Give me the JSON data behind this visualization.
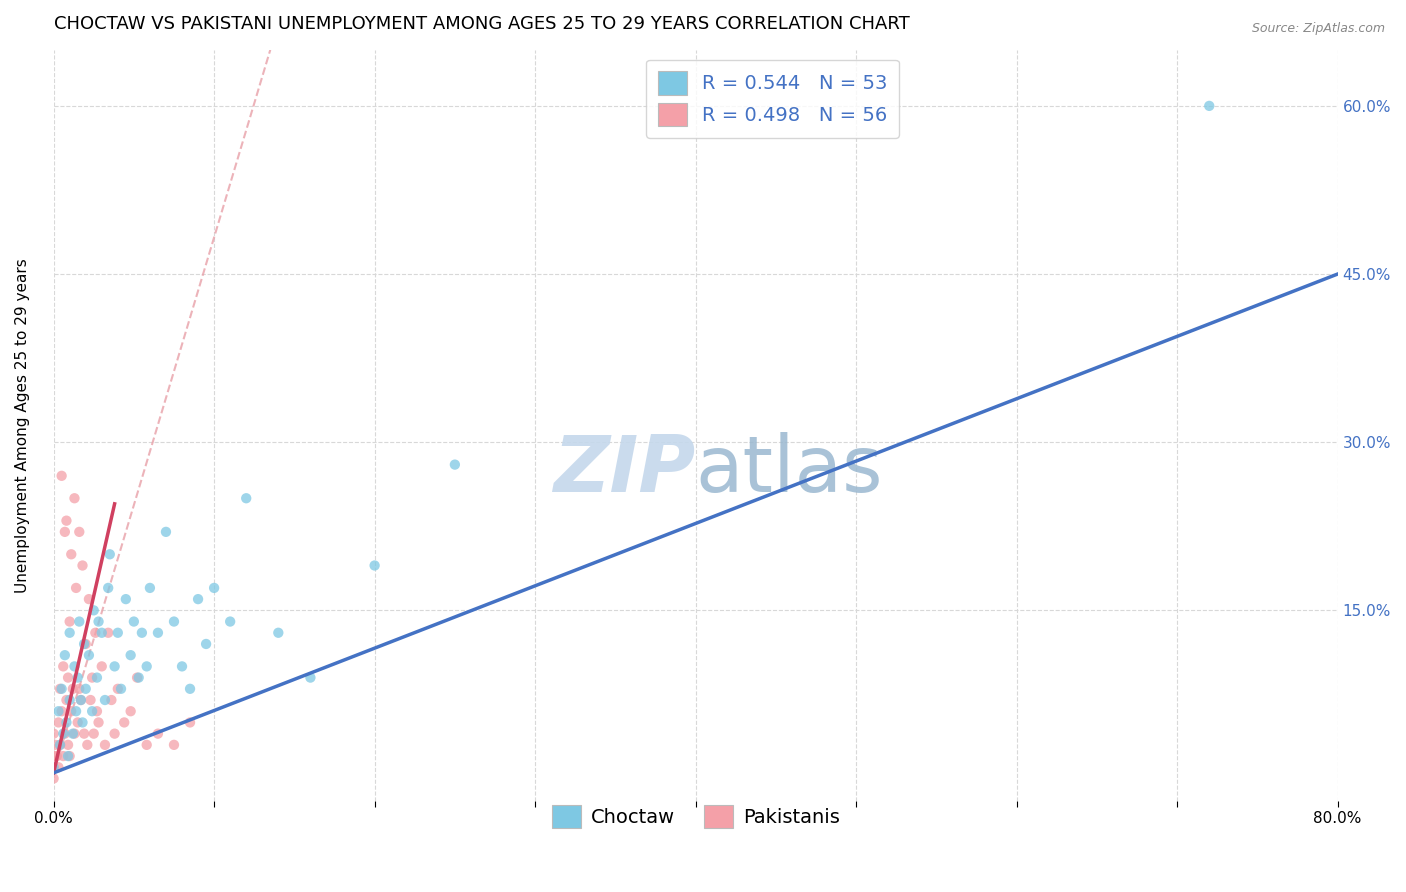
{
  "title": "CHOCTAW VS PAKISTANI UNEMPLOYMENT AMONG AGES 25 TO 29 YEARS CORRELATION CHART",
  "source": "Source: ZipAtlas.com",
  "ylabel": "Unemployment Among Ages 25 to 29 years",
  "xlim": [
    0.0,
    0.8
  ],
  "ylim": [
    -0.02,
    0.65
  ],
  "xticks": [
    0.0,
    0.1,
    0.2,
    0.3,
    0.4,
    0.5,
    0.6,
    0.7,
    0.8
  ],
  "ytick_labels_right": [
    "15.0%",
    "30.0%",
    "45.0%",
    "60.0%"
  ],
  "ytick_values_right": [
    0.15,
    0.3,
    0.45,
    0.6
  ],
  "choctaw_color": "#7ec8e3",
  "pakistani_color": "#f4a0a8",
  "choctaw_R": 0.544,
  "choctaw_N": 53,
  "pakistani_R": 0.498,
  "pakistani_N": 56,
  "legend_label_choctaw": "Choctaw",
  "legend_label_pakistani": "Pakistanis",
  "choctaw_scatter_x": [
    0.0,
    0.003,
    0.004,
    0.005,
    0.006,
    0.007,
    0.008,
    0.009,
    0.01,
    0.01,
    0.012,
    0.013,
    0.014,
    0.015,
    0.016,
    0.017,
    0.018,
    0.019,
    0.02,
    0.022,
    0.024,
    0.025,
    0.027,
    0.028,
    0.03,
    0.032,
    0.034,
    0.035,
    0.038,
    0.04,
    0.042,
    0.045,
    0.048,
    0.05,
    0.053,
    0.055,
    0.058,
    0.06,
    0.065,
    0.07,
    0.075,
    0.08,
    0.085,
    0.09,
    0.095,
    0.1,
    0.11,
    0.12,
    0.14,
    0.16,
    0.2,
    0.25,
    0.72
  ],
  "choctaw_scatter_y": [
    0.01,
    0.06,
    0.03,
    0.08,
    0.04,
    0.11,
    0.05,
    0.02,
    0.07,
    0.13,
    0.04,
    0.1,
    0.06,
    0.09,
    0.14,
    0.07,
    0.05,
    0.12,
    0.08,
    0.11,
    0.06,
    0.15,
    0.09,
    0.14,
    0.13,
    0.07,
    0.17,
    0.2,
    0.1,
    0.13,
    0.08,
    0.16,
    0.11,
    0.14,
    0.09,
    0.13,
    0.1,
    0.17,
    0.13,
    0.22,
    0.14,
    0.1,
    0.08,
    0.16,
    0.12,
    0.17,
    0.14,
    0.25,
    0.13,
    0.09,
    0.19,
    0.28,
    0.6
  ],
  "pakistani_scatter_x": [
    0.0,
    0.0,
    0.0,
    0.0,
    0.001,
    0.002,
    0.003,
    0.003,
    0.004,
    0.004,
    0.005,
    0.005,
    0.006,
    0.006,
    0.007,
    0.007,
    0.008,
    0.008,
    0.009,
    0.009,
    0.01,
    0.01,
    0.011,
    0.011,
    0.012,
    0.013,
    0.013,
    0.014,
    0.015,
    0.016,
    0.016,
    0.017,
    0.018,
    0.019,
    0.02,
    0.021,
    0.022,
    0.023,
    0.024,
    0.025,
    0.026,
    0.027,
    0.028,
    0.03,
    0.032,
    0.034,
    0.036,
    0.038,
    0.04,
    0.044,
    0.048,
    0.052,
    0.058,
    0.065,
    0.075,
    0.085
  ],
  "pakistani_scatter_y": [
    0.0,
    0.01,
    0.02,
    0.04,
    0.03,
    0.02,
    0.05,
    0.01,
    0.08,
    0.03,
    0.27,
    0.06,
    0.1,
    0.02,
    0.22,
    0.04,
    0.07,
    0.23,
    0.03,
    0.09,
    0.14,
    0.02,
    0.2,
    0.06,
    0.08,
    0.25,
    0.04,
    0.17,
    0.05,
    0.22,
    0.08,
    0.07,
    0.19,
    0.04,
    0.12,
    0.03,
    0.16,
    0.07,
    0.09,
    0.04,
    0.13,
    0.06,
    0.05,
    0.1,
    0.03,
    0.13,
    0.07,
    0.04,
    0.08,
    0.05,
    0.06,
    0.09,
    0.03,
    0.04,
    0.03,
    0.05
  ],
  "choctaw_line_x": [
    0.0,
    0.8
  ],
  "choctaw_line_y": [
    0.005,
    0.45
  ],
  "pakistani_solid_line_x": [
    0.0,
    0.038
  ],
  "pakistani_solid_line_y": [
    0.005,
    0.245
  ],
  "pakistani_dashed_line_x": [
    0.0,
    0.135
  ],
  "pakistani_dashed_line_y": [
    0.005,
    0.65
  ],
  "title_fontsize": 13,
  "axis_label_fontsize": 11,
  "tick_fontsize": 11,
  "legend_fontsize": 14,
  "marker_size": 55,
  "background_color": "#ffffff",
  "grid_color": "#d8d8d8",
  "choctaw_line_color": "#4472c4",
  "pakistani_solid_line_color": "#d04060",
  "pakistani_dashed_line_color": "#e8a0a8",
  "right_tick_color": "#4472c4",
  "watermark_zip_color": "#c5d8ec",
  "watermark_atlas_color": "#9ab8d0"
}
